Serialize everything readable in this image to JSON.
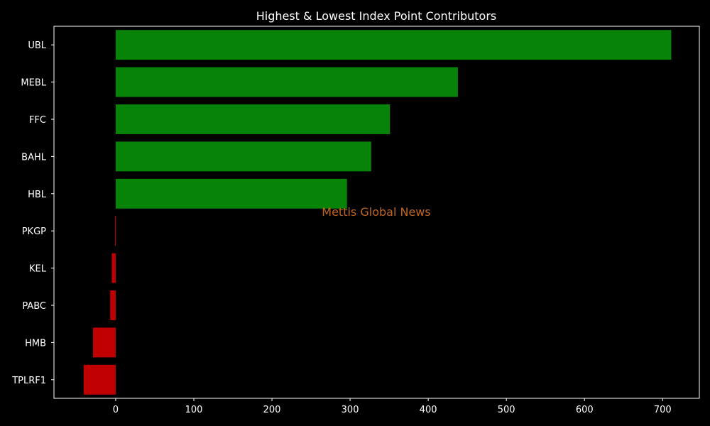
{
  "chart_data": {
    "type": "bar",
    "orientation": "horizontal",
    "title": "Highest & Lowest Index Point Contributors",
    "xlabel": "",
    "ylabel": "",
    "categories": [
      "UBL",
      "MEBL",
      "FFC",
      "BAHL",
      "HBL",
      "PKGP",
      "KEL",
      "PABC",
      "HMB",
      "TPLRF1"
    ],
    "values": [
      711,
      438,
      351,
      327,
      296,
      -1,
      -5,
      -7,
      -29,
      -41
    ],
    "xlim": [
      -79,
      747
    ],
    "xticks": [
      0,
      100,
      200,
      300,
      400,
      500,
      600,
      700
    ],
    "xtick_labels": [
      "0",
      "100",
      "200",
      "300",
      "400",
      "500",
      "600",
      "700"
    ],
    "grid": false,
    "legend": "none",
    "watermark": "Mettis Global News"
  },
  "colors": {
    "background": "#000000",
    "positive": "#078307",
    "negative": "#c00000",
    "text": "#ffffff",
    "axis": "#ffffff",
    "watermark": "#c0651e"
  }
}
